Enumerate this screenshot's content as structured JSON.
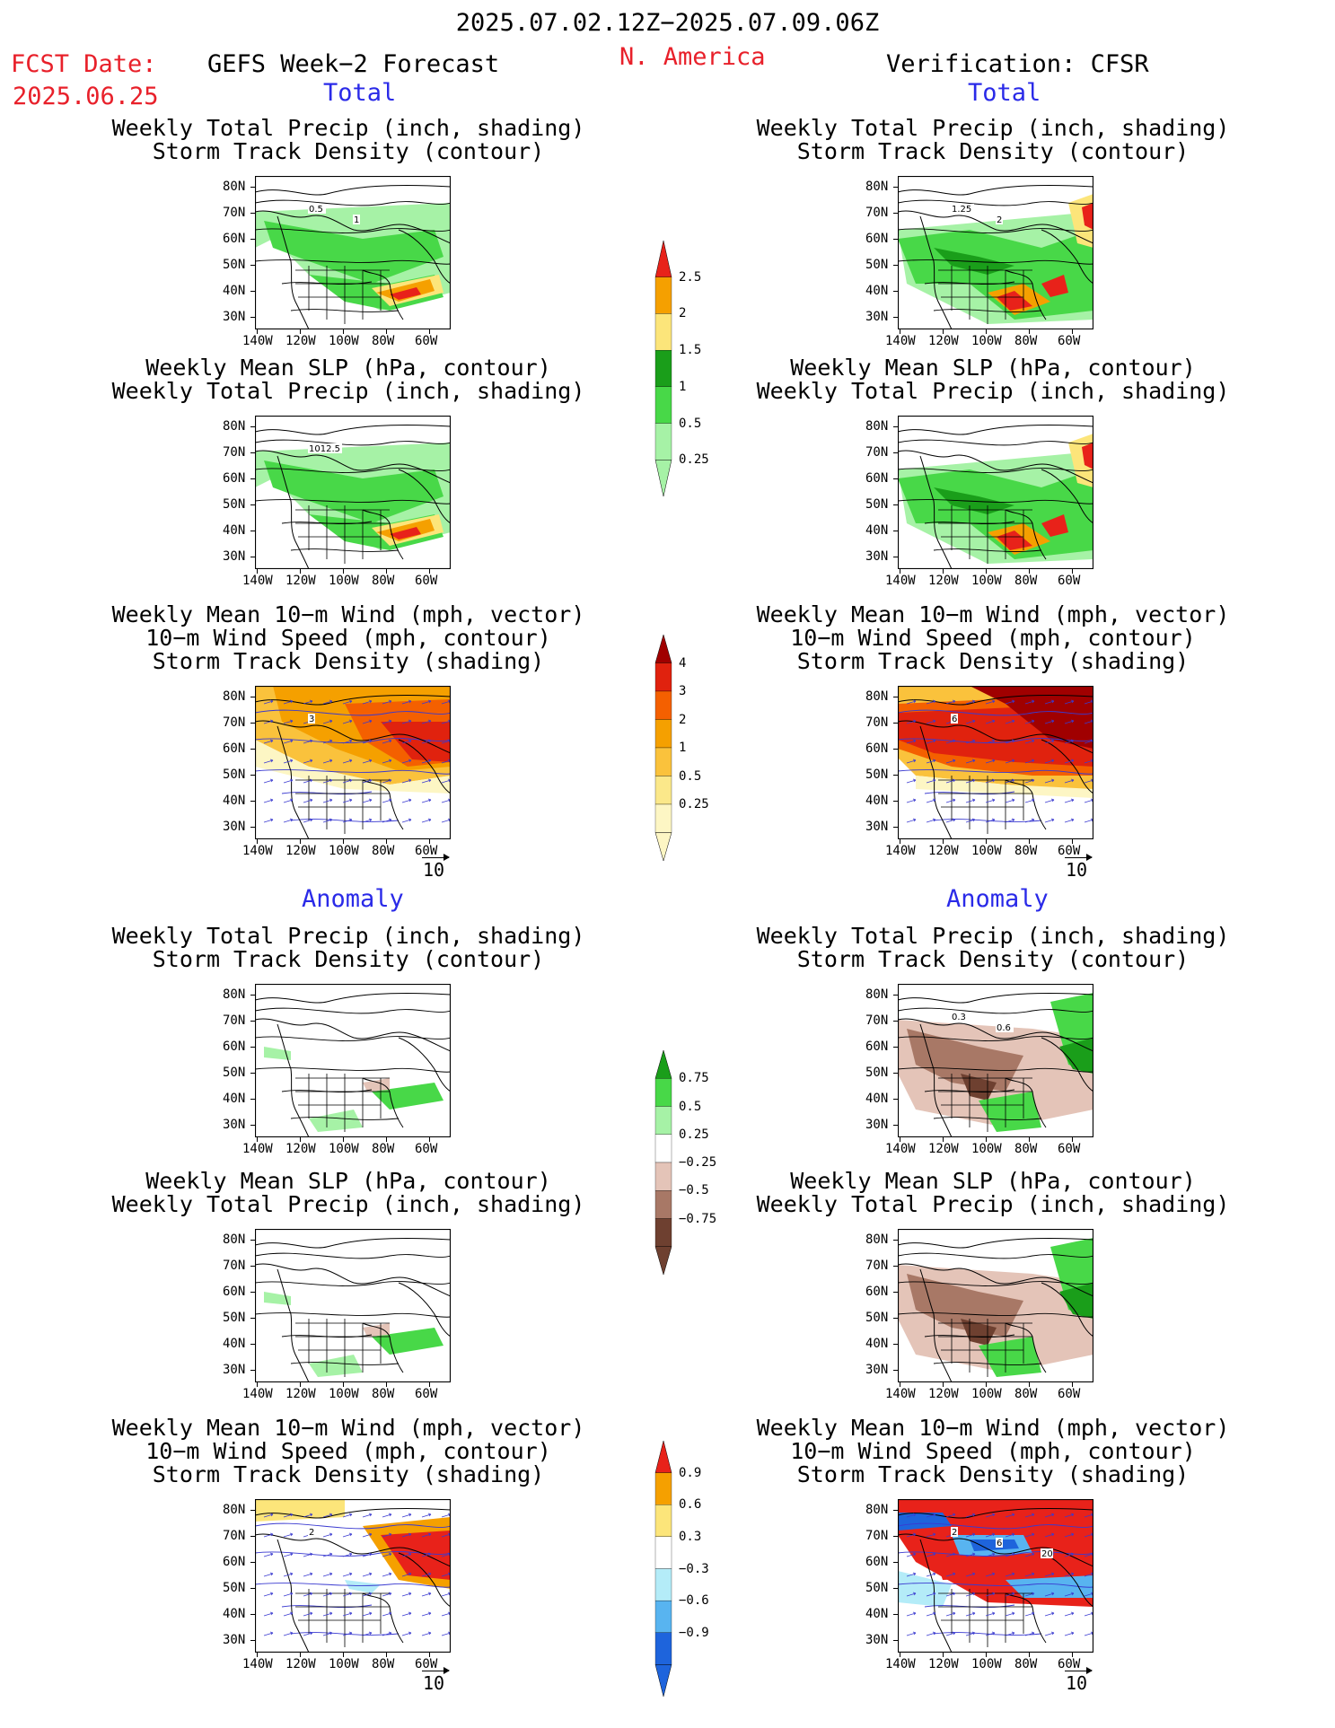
{
  "header": {
    "date_range": "2025.07.02.12Z−2025.07.09.06Z",
    "fcst_label": "FCST Date:",
    "fcst_date": "2025.06.25",
    "forecast_title": "GEFS Week−2 Forecast",
    "region": "N. America",
    "verification": "Verification: CFSR"
  },
  "sections": {
    "total": "Total",
    "anomaly": "Anomaly"
  },
  "titles": {
    "precip_storm": [
      "Weekly Total Precip (inch, shading)",
      "Storm Track Density (contour)"
    ],
    "slp_precip": [
      "Weekly Mean SLP (hPa, contour)",
      "Weekly Total Precip (inch, shading)"
    ],
    "wind_storm": [
      "Weekly Mean 10−m Wind (mph, vector)",
      "10−m Wind Speed (mph, contour)",
      "Storm Track Density (shading)"
    ]
  },
  "axes": {
    "lat_labels": [
      "80N",
      "70N",
      "60N",
      "50N",
      "40N",
      "30N"
    ],
    "lon_labels": [
      "140W",
      "120W",
      "100W",
      "80W",
      "60W"
    ]
  },
  "vector_ref": "10",
  "contour_labels": {
    "fcst_total_precip": [
      "0.5",
      "1"
    ],
    "obs_total_precip": [
      "1.25",
      "2"
    ],
    "fcst_total_slp": [
      "1012.5"
    ],
    "fcst_total_wind": [
      "3"
    ],
    "obs_total_wind": [
      "6"
    ],
    "obs_anom_precip": [
      "0.3",
      "0.6"
    ],
    "fcst_anom_wind": [
      "2"
    ],
    "obs_anom_wind": [
      "2",
      "6",
      "20"
    ]
  },
  "colorbars": {
    "precip_total": {
      "labels": [
        "2.5",
        "2",
        "1.5",
        "1",
        "0.5",
        "0.25"
      ],
      "colors": [
        "#e8221a",
        "#f5a000",
        "#fce57a",
        "#1a9e1a",
        "#48d848",
        "#a6f2a6"
      ]
    },
    "storm_total": {
      "labels": [
        "4",
        "3",
        "2",
        "1",
        "0.5",
        "0.25"
      ],
      "colors": [
        "#a00000",
        "#e0220e",
        "#f46000",
        "#f5a000",
        "#fac23c",
        "#fbe88a",
        "#fdf6c4"
      ]
    },
    "precip_anom": {
      "labels": [
        "0.75",
        "0.5",
        "0.25",
        "−0.25",
        "−0.5",
        "−0.75"
      ],
      "colors": [
        "#1a9e1a",
        "#48d848",
        "#a6f2a6",
        "#ffffff",
        "#e4c4b8",
        "#a87866",
        "#6e4030"
      ]
    },
    "storm_anom": {
      "labels": [
        "0.9",
        "0.6",
        "0.3",
        "−0.3",
        "−0.6",
        "−0.9"
      ],
      "colors": [
        "#e8221a",
        "#f5a000",
        "#fce57a",
        "#ffffff",
        "#b4ecf8",
        "#58b4f0",
        "#1e64dc"
      ]
    }
  }
}
